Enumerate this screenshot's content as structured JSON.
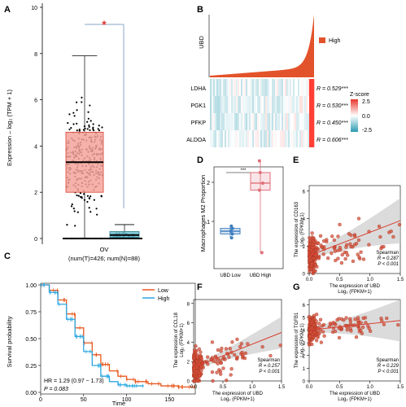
{
  "colors": {
    "tumor": "#f4a59b",
    "tumor_edge": "#d7402f",
    "normal": "#6fc2d4",
    "red": "#e34a33",
    "point": "#d6503a",
    "blue_line": "#2aa7e0",
    "low_box": "#3f7fc1",
    "high_box": "#e06f7a",
    "band": "#cccccc"
  },
  "panel_labels": {
    "a": "A",
    "b": "B",
    "c": "C",
    "d": "D",
    "e": "E",
    "f": "F",
    "g": "G"
  },
  "chart_data": [
    {
      "id": "A",
      "type": "box",
      "ylabel": "Expression – log₂ (TPM + 1)",
      "ylim": [
        0,
        10
      ],
      "yticks": [
        0,
        2,
        4,
        6,
        8,
        10
      ],
      "xlabel": "OV",
      "sublabel": "(num(T)=426; num(N)=88)",
      "significance": "*",
      "groups": [
        {
          "group": "T",
          "n": 426,
          "min": 0.0,
          "q1": 2.0,
          "median": 3.3,
          "q3": 4.6,
          "max": 7.9,
          "outlier_max": 9.4
        },
        {
          "group": "N",
          "n": 88,
          "min": 0.0,
          "q1": 0.05,
          "median": 0.15,
          "q3": 0.3,
          "max": 0.6,
          "outlier_max": 0.8
        }
      ]
    },
    {
      "id": "B",
      "type": "heatmap",
      "ylabel": "UBD",
      "legend_label": "High",
      "rows": [
        "LDHA",
        "PGK1",
        "PFKP",
        "ALDOA"
      ],
      "r_values": [
        "R = 0.529***",
        "R = 0.530***",
        "R = 0.450***",
        "R = 0.606***"
      ],
      "colorbar_title": "Z-score",
      "colorbar_ticks": [
        "2.5",
        "0.0",
        "-2.5"
      ],
      "scale": [
        -2.5,
        2.5
      ]
    },
    {
      "id": "C",
      "type": "line",
      "ylabel": "Survival probability",
      "xlabel": "Time",
      "xlim": [
        0,
        180
      ],
      "xticks": [
        0,
        50,
        100,
        150
      ],
      "ylim": [
        0,
        1
      ],
      "yticks": [
        "0.00",
        "0.25",
        "0.50",
        "0.75",
        "1.00"
      ],
      "legend": [
        "Low",
        "High"
      ],
      "hr_text": "HR = 1.29 (0.97 − 1.73)",
      "p_text": "P = 0.083",
      "series": [
        {
          "name": "Low",
          "x": [
            0,
            10,
            20,
            30,
            40,
            50,
            60,
            70,
            80,
            90,
            100,
            110,
            125,
            140,
            160,
            180
          ],
          "y": [
            1.0,
            0.95,
            0.86,
            0.73,
            0.6,
            0.46,
            0.35,
            0.26,
            0.2,
            0.15,
            0.12,
            0.1,
            0.08,
            0.06,
            0.05,
            0.05
          ]
        },
        {
          "name": "High",
          "x": [
            0,
            10,
            20,
            30,
            40,
            50,
            60,
            70,
            80,
            90,
            100,
            110,
            120
          ],
          "y": [
            1.0,
            0.93,
            0.82,
            0.68,
            0.52,
            0.38,
            0.25,
            0.15,
            0.1,
            0.07,
            0.06,
            0.06,
            0.06
          ]
        }
      ]
    },
    {
      "id": "D",
      "type": "box",
      "ylabel": "Macrophages M2 Proportion",
      "yticks": [
        1,
        2
      ],
      "ylim": [
        0,
        2.5
      ],
      "significance": "***",
      "categories": [
        "UBD Low",
        "UBD High"
      ],
      "groups": [
        {
          "group": "UBD Low",
          "min": 0.58,
          "q1": 0.68,
          "median": 0.75,
          "q3": 0.82,
          "max": 0.88
        },
        {
          "group": "UBD High",
          "min": 0.2,
          "q1": 1.8,
          "median": 1.98,
          "q3": 2.25,
          "max": 2.55
        }
      ]
    },
    {
      "id": "E",
      "type": "scatter",
      "ylabel": "The expression of CD163\nLog₂ (FPKM+1)",
      "xlabel": "The expression of UBD\nLog₂ (FPKM+1)",
      "xlim": [
        0,
        1.5
      ],
      "xticks": [
        "0.0",
        "0.5",
        "1.0",
        "1.5"
      ],
      "ylim": [
        0,
        6.4
      ],
      "yticks": [
        0,
        2,
        4,
        6
      ],
      "stats": [
        "Spearman",
        "R = 0.287",
        "P < 0.001"
      ],
      "fit": {
        "intercept": 1.3,
        "slope": 1.7
      }
    },
    {
      "id": "F",
      "type": "scatter",
      "ylabel": "The expression of CCL18\nLog₂ (FPKM+1)",
      "xlabel": "The expression of UBD\nLog₂ (FPKM+1)",
      "xlim": [
        0,
        1.5
      ],
      "xticks": [
        "0.0",
        "0.5",
        "1.0",
        "1.5"
      ],
      "ylim": [
        0,
        8.4
      ],
      "yticks": [
        0,
        2,
        4,
        6,
        8
      ],
      "stats": [
        "Spearman",
        "R = 0.257",
        "P < 0.001"
      ],
      "fit": {
        "intercept": 1.4,
        "slope": 2.4
      }
    },
    {
      "id": "G",
      "type": "scatter",
      "ylabel": "The expression of TGFB1\nLog₂ (FPKM+1)",
      "xlabel": "The expression of UBD\nLog₂ (FPKM+1)",
      "xlim": [
        0,
        1.5
      ],
      "xticks": [
        "0.0",
        "0.5",
        "1.0",
        "1.5"
      ],
      "ylim": [
        0,
        6.4
      ],
      "yticks": [
        0,
        1,
        2,
        3,
        4,
        5,
        6
      ],
      "stats": [
        "Spearman",
        "R = 0.229",
        "P < 0.001"
      ],
      "fit": {
        "intercept": 4.0,
        "slope": 0.5
      }
    }
  ]
}
